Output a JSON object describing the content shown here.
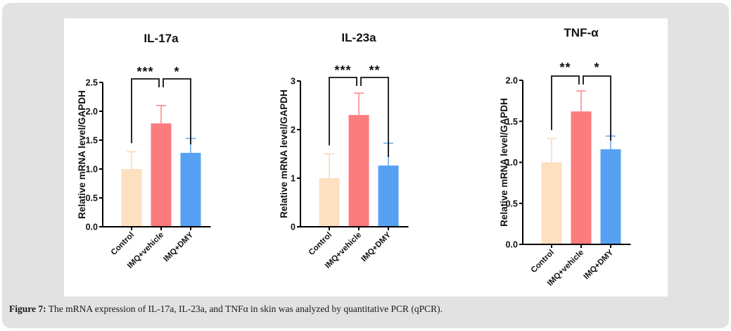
{
  "caption": {
    "label": "Figure 7:",
    "text": " The mRNA expression of IL-17a, IL-23a, and TNFα in skin was analyzed by quantitative PCR (qPCR)."
  },
  "colors": {
    "Control": "#fde0c0",
    "IMQ+vehicle": "#fc7b7d",
    "IMQ+DMY": "#57a1f5",
    "Control_err": "#fcd9b6",
    "IMQ+vehicle_err": "#fb8a8e",
    "IMQ+DMY_err": "#6aa9f4",
    "axis": "#000000"
  },
  "chart_data": [
    {
      "type": "bar",
      "title": "IL-17a",
      "xlabel": "",
      "ylabel": "Relative mRNA level/GAPDH",
      "categories": [
        "Control",
        "IMQ+vehicle",
        "IMQ+DMY"
      ],
      "values": [
        1.0,
        1.79,
        1.28
      ],
      "error_upper": [
        1.3,
        2.1,
        1.53
      ],
      "ylim": [
        0,
        2.5
      ],
      "yticks": [
        "0.0",
        "0.5",
        "1.0",
        "1.5",
        "2.0",
        "2.5"
      ],
      "ytick_values": [
        0,
        0.5,
        1.0,
        1.5,
        2.0,
        2.5
      ],
      "grid": false,
      "significance": [
        {
          "from": "Control",
          "to": "IMQ+vehicle",
          "label": "***"
        },
        {
          "from": "IMQ+vehicle",
          "to": "IMQ+DMY",
          "label": "*"
        }
      ]
    },
    {
      "type": "bar",
      "title": "IL-23a",
      "xlabel": "",
      "ylabel": "Relative mRNA level/GAPDH",
      "categories": [
        "Control",
        "IMQ+vehicle",
        "IMQ+DMY"
      ],
      "values": [
        1.0,
        2.3,
        1.26
      ],
      "error_upper": [
        1.5,
        2.75,
        1.72
      ],
      "ylim": [
        0,
        3
      ],
      "yticks": [
        "0",
        "1",
        "2",
        "3"
      ],
      "ytick_values": [
        0,
        1,
        2,
        3
      ],
      "grid": false,
      "significance": [
        {
          "from": "Control",
          "to": "IMQ+vehicle",
          "label": "***"
        },
        {
          "from": "IMQ+vehicle",
          "to": "IMQ+DMY",
          "label": "**"
        }
      ]
    },
    {
      "type": "bar",
      "title": "TNF-α",
      "xlabel": "",
      "ylabel": "Relative mRNA level/GAPDH",
      "categories": [
        "Control",
        "IMQ+vehicle",
        "IMQ+DMY"
      ],
      "values": [
        1.0,
        1.62,
        1.16
      ],
      "error_upper": [
        1.29,
        1.87,
        1.32
      ],
      "ylim": [
        0,
        2.0
      ],
      "yticks": [
        "0.0",
        "0.5",
        "1.0",
        "1.5",
        "2.0"
      ],
      "ytick_values": [
        0,
        0.5,
        1.0,
        1.5,
        2.0
      ],
      "grid": false,
      "significance": [
        {
          "from": "Control",
          "to": "IMQ+vehicle",
          "label": "**"
        },
        {
          "from": "IMQ+vehicle",
          "to": "IMQ+DMY",
          "label": "*"
        }
      ]
    }
  ]
}
